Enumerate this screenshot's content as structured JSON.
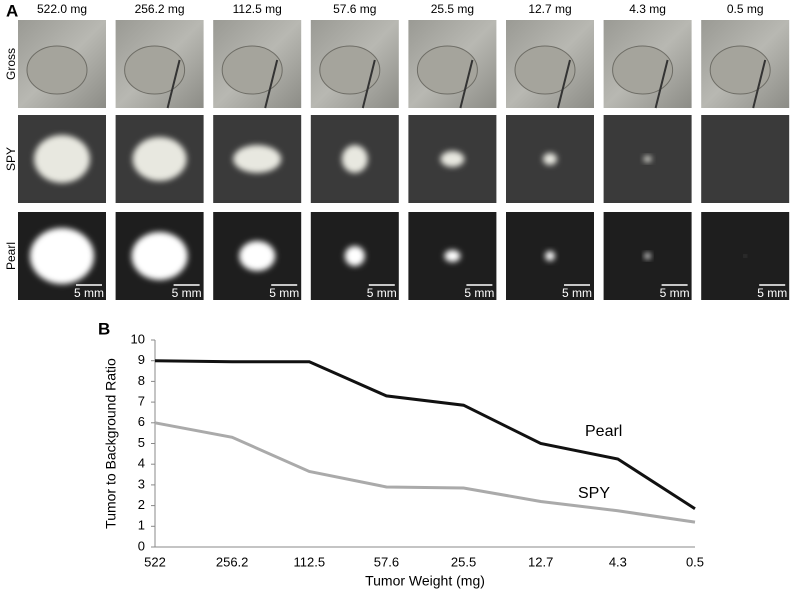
{
  "panel_a": {
    "label": "A",
    "column_labels": [
      "522.0 mg",
      "256.2 mg",
      "112.5 mg",
      "57.6 mg",
      "25.5 mg",
      "12.7 mg",
      "4.3 mg",
      "0.5 mg"
    ],
    "row_labels": [
      "Gross",
      "SPY",
      "Pearl"
    ],
    "scale_bar_labels": [
      "5 mm",
      "5 mm",
      "5 mm",
      "5 mm",
      "5 mm",
      "5 mm",
      "5 mm",
      "5 mm"
    ]
  },
  "chart_data": {
    "type": "line",
    "panel_label": "B",
    "x_label": "Tumor Weight (mg)",
    "y_label": "Tumor to Background Ratio",
    "categories": [
      "522",
      "256.2",
      "112.5",
      "57.6",
      "25.5",
      "12.7",
      "4.3",
      "0.5"
    ],
    "series": [
      {
        "name": "Pearl",
        "color": "#111111",
        "values": [
          9.0,
          8.95,
          8.95,
          7.3,
          6.85,
          5.0,
          4.25,
          1.85
        ]
      },
      {
        "name": "SPY",
        "color": "#aaaaaa",
        "values": [
          6.0,
          5.3,
          3.65,
          2.9,
          2.85,
          2.2,
          1.75,
          1.2
        ]
      }
    ],
    "ylim": [
      0,
      10
    ],
    "yticks": [
      0,
      1,
      2,
      3,
      4,
      5,
      6,
      7,
      8,
      9,
      10
    ],
    "grid": false
  }
}
